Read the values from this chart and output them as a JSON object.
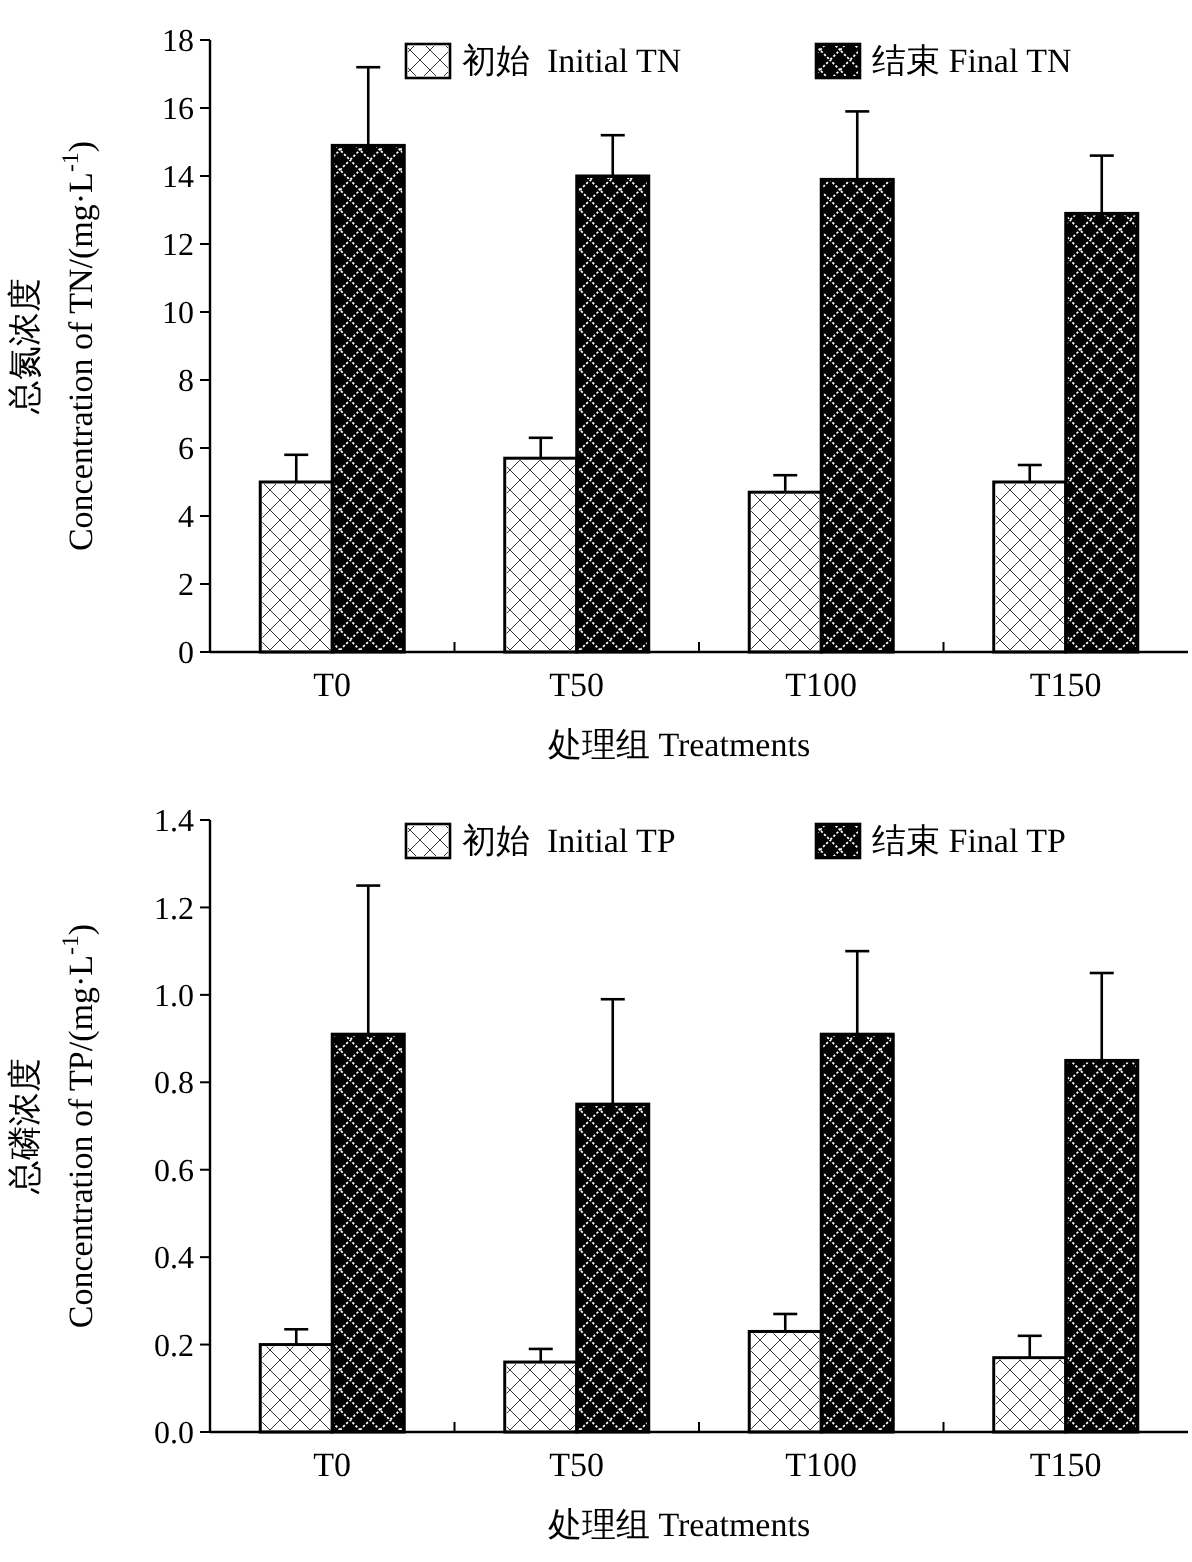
{
  "chart_data": [
    {
      "type": "bar",
      "categories": [
        "T0",
        "T50",
        "T100",
        "T150"
      ],
      "xlabel": "处理组 Treatments",
      "ylabel": "总氮浓度\nConcentration of TN/(mg·L$^{-1}$)",
      "ylim": [
        0,
        18
      ],
      "yticks": [
        0,
        2,
        4,
        6,
        8,
        10,
        12,
        14,
        16,
        18
      ],
      "legend": "top right",
      "grid": false,
      "series": [
        {
          "name": "初始  Initial TN",
          "color": "#ffffff",
          "values": [
            5.0,
            5.7,
            4.7,
            5.0
          ],
          "errors": [
            [
              5.0,
              5.8
            ],
            [
              5.7,
              6.3
            ],
            [
              4.7,
              5.2
            ],
            [
              5.0,
              5.5
            ]
          ]
        },
        {
          "name": "结束 Final TN",
          "color": "#000000",
          "values": [
            14.9,
            14.0,
            13.9,
            12.9
          ],
          "errors": [
            [
              14.9,
              17.2
            ],
            [
              14.0,
              15.2
            ],
            [
              13.9,
              15.9
            ],
            [
              12.9,
              14.6
            ]
          ]
        }
      ]
    },
    {
      "type": "bar",
      "categories": [
        "T0",
        "T50",
        "T100",
        "T150"
      ],
      "xlabel": "处理组 Treatments",
      "ylabel": "总磷浓度\nConcentration of TP/(mg·L$^{-1}$)",
      "ylim": [
        0,
        1.4
      ],
      "yticks": [
        {
          "value": 0,
          "label": "0.0"
        },
        0.2,
        0.4,
        0.6,
        0.8,
        {
          "value": 1,
          "label": "1.0"
        },
        1.2,
        1.4
      ],
      "legend": "top right",
      "grid": false,
      "series": [
        {
          "name": "初始  Initial TP",
          "color": "#ffffff",
          "values": [
            0.2,
            0.16,
            0.23,
            0.17
          ],
          "errors": [
            [
              0.2,
              0.235
            ],
            [
              0.16,
              0.19
            ],
            [
              0.23,
              0.27
            ],
            [
              0.17,
              0.22
            ]
          ]
        },
        {
          "name": "结束 Final TP",
          "color": "#000000",
          "values": [
            0.91,
            0.75,
            0.91,
            0.85
          ],
          "errors": [
            [
              0.91,
              1.25
            ],
            [
              0.75,
              0.99
            ],
            [
              0.91,
              1.1
            ],
            [
              0.85,
              1.05
            ]
          ]
        }
      ]
    }
  ]
}
